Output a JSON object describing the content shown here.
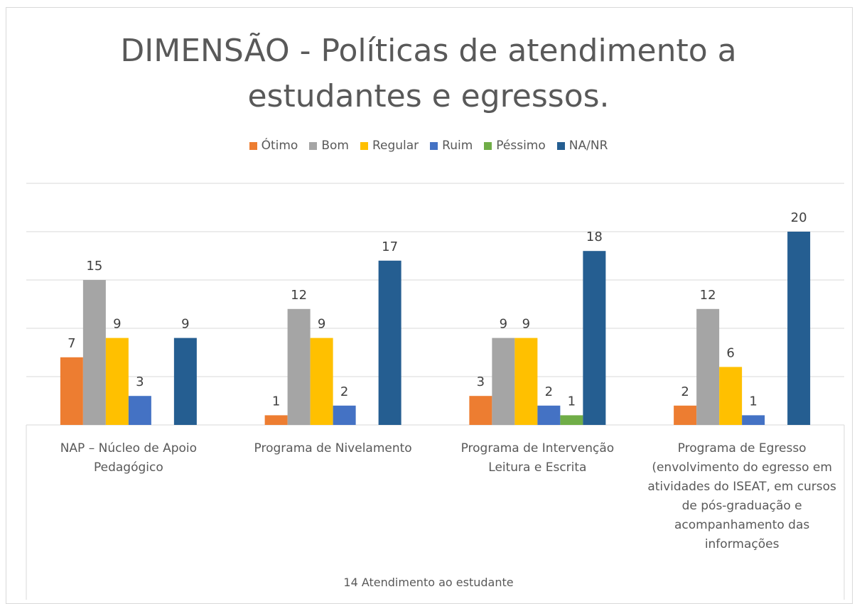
{
  "chart_data": {
    "type": "bar",
    "title": "DIMENSÃO - Políticas de atendimento a estudantes e egressos.",
    "x_label": "14 Atendimento ao estudante",
    "categories": [
      "NAP – Núcleo de Apoio Pedagógico",
      "Programa de Nivelamento",
      "Programa de Intervenção Leitura e Escrita",
      "Programa de Egresso (envolvimento do egresso em atividades do ISEAT, em cursos de pós-graduação e acompanhamento das informações"
    ],
    "series": [
      {
        "name": "Ótimo",
        "color": "#ED7D31",
        "values": [
          7,
          1,
          3,
          2
        ]
      },
      {
        "name": "Bom",
        "color": "#A5A5A5",
        "values": [
          15,
          12,
          9,
          12
        ]
      },
      {
        "name": "Regular",
        "color": "#FFC000",
        "values": [
          9,
          9,
          9,
          6
        ]
      },
      {
        "name": "Ruim",
        "color": "#4472C4",
        "values": [
          3,
          2,
          2,
          1
        ]
      },
      {
        "name": "Péssimo",
        "color": "#70AD47",
        "values": [
          null,
          null,
          1,
          null
        ]
      },
      {
        "name": "NA/NR",
        "color": "#255E91",
        "values": [
          9,
          17,
          18,
          20
        ]
      }
    ],
    "ylim": [
      0,
      25
    ],
    "yticks": [
      0,
      5,
      10,
      15,
      20,
      25
    ],
    "grid": true,
    "legend": "top"
  }
}
